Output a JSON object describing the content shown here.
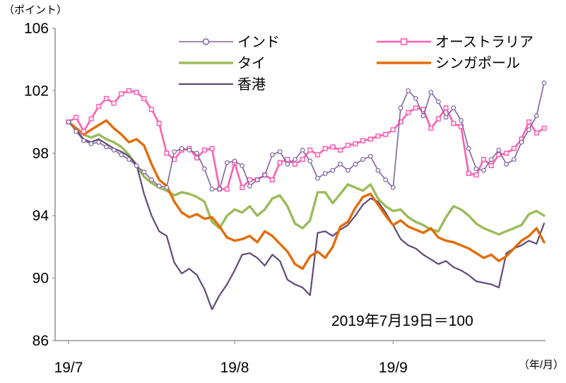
{
  "chart": {
    "y_axis_unit": "（ポイント）",
    "x_axis_unit": "（年/月）",
    "annotation": "2019年7月19日＝100"
  },
  "chart_data": {
    "type": "line",
    "title": "",
    "xlabel": "（年/月）",
    "ylabel": "（ポイント）",
    "ylim": [
      86,
      106
    ],
    "yticks": [
      86,
      90,
      94,
      98,
      102,
      106
    ],
    "x_count": 64,
    "xticks": [
      {
        "index": 0,
        "label": "19/7"
      },
      {
        "index": 22,
        "label": "19/8"
      },
      {
        "index": 43,
        "label": "19/9"
      }
    ],
    "grid": false,
    "legend_position": "top",
    "baseline_note": "2019年7月19日＝100",
    "series": [
      {
        "name": "インド",
        "id": "india",
        "color": "#8064A2",
        "marker": "circle",
        "width": 1.6,
        "values": [
          100,
          99.4,
          98.8,
          98.6,
          98.7,
          98.4,
          98.2,
          97.9,
          97.6,
          97.2,
          96.8,
          96.3,
          95.9,
          95.8,
          98.1,
          98.3,
          98.2,
          98.0,
          97.0,
          95.7,
          95.7,
          97.4,
          97.5,
          97.2,
          95.9,
          96.3,
          96.6,
          97.9,
          98.1,
          97.3,
          97.6,
          98.2,
          97.5,
          96.4,
          96.7,
          96.9,
          97.3,
          96.9,
          97.3,
          97.6,
          97.8,
          96.9,
          96.3,
          95.8,
          100.9,
          102.0,
          101.5,
          100.4,
          101.9,
          101.3,
          100.3,
          100.9,
          100.1,
          98.3,
          97.0,
          96.9,
          97.6,
          98.2,
          97.3,
          97.6,
          98.7,
          99.5,
          100.4,
          102.5
        ]
      },
      {
        "name": "タイ",
        "id": "thailand",
        "color": "#9BBB59",
        "marker": "none",
        "width": 3.4,
        "values": [
          100,
          99.6,
          99.2,
          99.0,
          99.2,
          98.9,
          98.7,
          98.4,
          97.9,
          97.2,
          96.5,
          96.1,
          95.8,
          95.6,
          95.3,
          95.5,
          95.4,
          95.2,
          94.9,
          93.6,
          93.2,
          94.0,
          94.4,
          94.2,
          94.6,
          94.0,
          94.4,
          95.1,
          95.3,
          94.6,
          93.5,
          93.2,
          93.7,
          95.5,
          95.5,
          94.8,
          95.4,
          96.0,
          95.8,
          95.6,
          96.0,
          95.1,
          94.6,
          94.3,
          94.4,
          93.9,
          93.6,
          93.4,
          93.1,
          93.0,
          93.9,
          94.6,
          94.4,
          94.0,
          93.5,
          93.2,
          93.0,
          92.8,
          93.0,
          93.2,
          93.4,
          94.1,
          94.3,
          94.0
        ]
      },
      {
        "name": "香港",
        "id": "hongkong",
        "color": "#5F497A",
        "marker": "none",
        "width": 2.2,
        "values": [
          100,
          99.5,
          98.9,
          98.7,
          98.9,
          98.6,
          98.3,
          98.1,
          97.8,
          97.3,
          95.4,
          94.0,
          93.0,
          92.7,
          91.0,
          90.3,
          90.6,
          90.2,
          89.3,
          88.0,
          88.9,
          89.6,
          90.5,
          91.5,
          91.6,
          91.3,
          90.8,
          91.5,
          91.1,
          89.9,
          89.6,
          89.4,
          88.9,
          92.9,
          93.0,
          92.7,
          93.1,
          93.4,
          94.0,
          94.7,
          95.1,
          94.9,
          94.2,
          93.4,
          92.5,
          92.1,
          91.9,
          91.5,
          91.2,
          90.9,
          91.1,
          90.7,
          90.5,
          90.2,
          89.8,
          89.7,
          89.6,
          89.4,
          91.6,
          91.9,
          92.1,
          92.4,
          92.2,
          93.5
        ]
      },
      {
        "name": "オーストラリア",
        "id": "australia",
        "color": "#FF5EB1",
        "marker": "square",
        "width": 2.6,
        "values": [
          100,
          100.3,
          99.4,
          100.2,
          101.0,
          101.5,
          101.2,
          101.8,
          102.0,
          101.9,
          101.5,
          100.8,
          99.9,
          98.0,
          97.6,
          98.2,
          98.3,
          97.7,
          98.2,
          98.3,
          95.7,
          95.7,
          97.4,
          95.8,
          96.3,
          96.3,
          96.6,
          96.3,
          97.4,
          97.6,
          97.3,
          97.6,
          98.2,
          97.9,
          98.3,
          98.4,
          98.2,
          98.5,
          98.6,
          98.8,
          98.9,
          99.1,
          99.2,
          99.5,
          100.0,
          100.6,
          100.9,
          100.8,
          99.6,
          100.2,
          100.9,
          99.9,
          99.7,
          96.7,
          96.6,
          97.6,
          97.2,
          97.9,
          98.0,
          98.3,
          98.9,
          100.0,
          99.3,
          99.6
        ]
      },
      {
        "name": "シンガポール",
        "id": "singapore",
        "color": "#E36C09",
        "marker": "none",
        "width": 3.4,
        "values": [
          100,
          99.6,
          99.2,
          99.5,
          99.8,
          100.1,
          99.6,
          99.2,
          98.7,
          98.9,
          98.5,
          97.3,
          96.3,
          95.9,
          94.9,
          94.2,
          93.9,
          94.1,
          93.8,
          93.9,
          93.3,
          92.6,
          92.4,
          92.5,
          92.7,
          92.3,
          93.0,
          92.7,
          92.2,
          91.7,
          90.9,
          90.6,
          91.4,
          91.7,
          91.3,
          92.0,
          93.3,
          93.6,
          94.5,
          95.2,
          95.4,
          94.7,
          94.0,
          93.4,
          93.7,
          93.3,
          93.1,
          92.9,
          93.2,
          92.6,
          92.4,
          92.3,
          92.1,
          91.9,
          91.6,
          91.3,
          91.5,
          91.1,
          91.4,
          91.9,
          92.4,
          92.7,
          93.2,
          92.3
        ]
      }
    ]
  }
}
